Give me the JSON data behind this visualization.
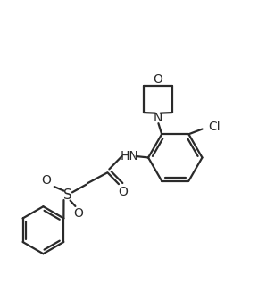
{
  "background_color": "#ffffff",
  "line_color": "#2a2a2a",
  "line_width": 1.6,
  "fig_width": 2.89,
  "fig_height": 3.27,
  "dpi": 100,
  "xlim": [
    0,
    10
  ],
  "ylim": [
    0,
    11.3
  ]
}
